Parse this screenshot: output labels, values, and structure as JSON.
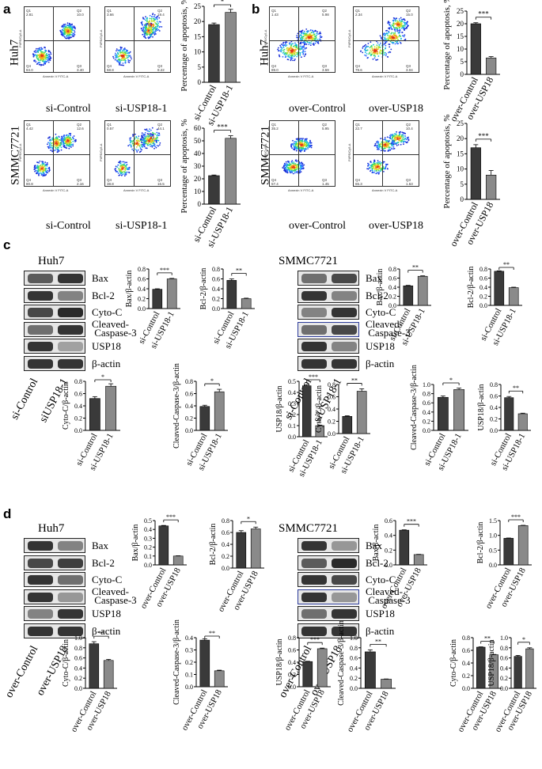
{
  "panels": {
    "a": "a",
    "b": "b",
    "c": "c",
    "d": "d"
  },
  "flow": {
    "axis_x": "Annexin V FITC-A",
    "axis_y": "PI/PE/Cy5-A",
    "plots": [
      {
        "id": "a-huh7-ctrl",
        "q": [
          "2.81",
          "10.0",
          "84.0",
          "3.40"
        ]
      },
      {
        "id": "a-huh7-si",
        "q": [
          "3.66",
          "19.4",
          "68.8",
          "8.22"
        ]
      },
      {
        "id": "a-smmc-ctrl",
        "q": [
          "4.42",
          "12.6",
          "80.8",
          "2.16"
        ]
      },
      {
        "id": "a-smmc-si",
        "q": [
          "0.57",
          "44.1",
          "38.8",
          "16.5"
        ]
      },
      {
        "id": "b-huh7-ctrl",
        "q": [
          "1.43",
          "5.98",
          "89.0",
          "3.59"
        ]
      },
      {
        "id": "b-huh7-over",
        "q": [
          "2.34",
          "15.0",
          "79.6",
          "3.04"
        ]
      },
      {
        "id": "b-smmc-ctrl",
        "q": [
          "35.2",
          "5.95",
          "57.4",
          "1.45"
        ]
      },
      {
        "id": "b-smmc-over",
        "q": [
          "22.7",
          "10.4",
          "65.3",
          "1.63"
        ]
      }
    ],
    "captions": {
      "si_control": "si-Control",
      "si_usp18": "si-USP18-1",
      "over_control": "over-Control",
      "over_usp18": "over-USP18"
    },
    "row_huh7": "Huh7",
    "row_smmc": "SMMC7721"
  },
  "western": {
    "huh7_title": "Huh7",
    "smmc_title": "SMMC7721",
    "proteins": [
      "Bax",
      "Bcl-2",
      "Cyto-C",
      "Cleaved-",
      "Caspase-3",
      "USP18",
      "β-actin"
    ],
    "lanes_c": [
      "si-Control",
      "siUSP18-1"
    ],
    "lanes_d": [
      "over-Control",
      "over-USP18"
    ]
  },
  "chart_data": [
    {
      "type": "bar",
      "panel": "a",
      "cell": "Huh7",
      "ylabel": "Percentage of apoptosis, %",
      "categories": [
        "si-Control",
        "si-USP18-1"
      ],
      "values": [
        19,
        23
      ],
      "errors": [
        0.5,
        1
      ],
      "sig": "*",
      "ylim": [
        0,
        25
      ],
      "yticks": [
        0,
        5,
        10,
        15,
        20,
        25
      ]
    },
    {
      "type": "bar",
      "panel": "a",
      "cell": "SMMC7721",
      "ylabel": "Percentage of apoptosis, %",
      "categories": [
        "si-Control",
        "si-USP18-1"
      ],
      "values": [
        22.5,
        52
      ],
      "errors": [
        0.5,
        2
      ],
      "sig": "***",
      "ylim": [
        0,
        60
      ],
      "yticks": [
        0,
        10,
        20,
        30,
        40,
        50,
        60
      ]
    },
    {
      "type": "bar",
      "panel": "b",
      "cell": "Huh7",
      "ylabel": "Percentage of apoptosis, %",
      "categories": [
        "over-Control",
        "over-USP18"
      ],
      "values": [
        20,
        6.5
      ],
      "errors": [
        0.4,
        0.5
      ],
      "sig": "***",
      "ylim": [
        0,
        25
      ],
      "yticks": [
        0,
        5,
        10,
        15,
        20,
        25
      ]
    },
    {
      "type": "bar",
      "panel": "b",
      "cell": "SMMC7721",
      "ylabel": "Percentage of apoptosis, %",
      "categories": [
        "over-Control",
        "over-USP18"
      ],
      "values": [
        17,
        8
      ],
      "errors": [
        1,
        1.5
      ],
      "sig": "***",
      "ylim": [
        0,
        25
      ],
      "yticks": [
        0,
        5,
        10,
        15,
        20,
        25
      ]
    },
    {
      "type": "bar",
      "panel": "c",
      "cell": "Huh7",
      "ylabel": "Bax/β-actin",
      "categories": [
        "si-Control",
        "si-USP18-1"
      ],
      "values": [
        0.39,
        0.6
      ],
      "errors": [
        0.01,
        0.01
      ],
      "sig": "***",
      "ylim": [
        0,
        0.8
      ],
      "yticks": [
        0.0,
        0.2,
        0.4,
        0.6,
        0.8
      ]
    },
    {
      "type": "bar",
      "panel": "c",
      "cell": "Huh7",
      "ylabel": "Bcl-2/β-actin",
      "categories": [
        "si-Control",
        "si-USP18-1"
      ],
      "values": [
        0.57,
        0.2
      ],
      "errors": [
        0.03,
        0.01
      ],
      "sig": "**",
      "ylim": [
        0,
        0.8
      ],
      "yticks": [
        0.0,
        0.2,
        0.4,
        0.6,
        0.8
      ]
    },
    {
      "type": "bar",
      "panel": "c",
      "cell": "Huh7",
      "ylabel": "Cyto-C/β-actin",
      "categories": [
        "si-Control",
        "si-USP18-1"
      ],
      "values": [
        0.52,
        0.72
      ],
      "errors": [
        0.03,
        0.04
      ],
      "sig": "*",
      "ylim": [
        0,
        0.8
      ],
      "yticks": [
        0.0,
        0.2,
        0.4,
        0.6,
        0.8
      ]
    },
    {
      "type": "bar",
      "panel": "c",
      "cell": "Huh7",
      "ylabel": "Cleaved-Caspase-3/β-actin",
      "categories": [
        "si-Control",
        "si-USP18-1"
      ],
      "values": [
        0.39,
        0.63
      ],
      "errors": [
        0.02,
        0.04
      ],
      "sig": "*",
      "ylim": [
        0,
        0.8
      ],
      "yticks": [
        0.0,
        0.2,
        0.4,
        0.6,
        0.8
      ]
    },
    {
      "type": "bar",
      "panel": "c",
      "cell": "Huh7",
      "ylabel": "USP18/β-actin",
      "categories": [
        "si-Control",
        "si-USP18-1"
      ],
      "values": [
        0.46,
        0.1
      ],
      "errors": [
        0.01,
        0.005
      ],
      "sig": "***",
      "ylim": [
        0,
        0.5
      ],
      "yticks": [
        0.0,
        0.1,
        0.2,
        0.3,
        0.4,
        0.5
      ]
    },
    {
      "type": "bar",
      "panel": "c",
      "cell": "SMMC7721",
      "ylabel": "Bax/β-actin",
      "categories": [
        "si-Control",
        "si-USP18-1"
      ],
      "values": [
        0.43,
        0.64
      ],
      "errors": [
        0.01,
        0.01
      ],
      "sig": "**",
      "ylim": [
        0,
        0.8
      ],
      "yticks": [
        0.0,
        0.2,
        0.4,
        0.6,
        0.8
      ]
    },
    {
      "type": "bar",
      "panel": "c",
      "cell": "SMMC7721",
      "ylabel": "Bcl-2/β-actin",
      "categories": [
        "si-Control",
        "si-USP18-1"
      ],
      "values": [
        0.75,
        0.39
      ],
      "errors": [
        0.01,
        0.01
      ],
      "sig": "**",
      "ylim": [
        0,
        0.8
      ],
      "yticks": [
        0.0,
        0.2,
        0.4,
        0.6,
        0.8
      ]
    },
    {
      "type": "bar",
      "panel": "c",
      "cell": "SMMC7721",
      "ylabel": "Cyto-C/β-actin",
      "categories": [
        "si-Control",
        "si-USP18-1"
      ],
      "values": [
        0.28,
        0.69
      ],
      "errors": [
        0.01,
        0.04
      ],
      "sig": "**",
      "ylim": [
        0,
        0.8
      ],
      "yticks": [
        0.0,
        0.2,
        0.4,
        0.6,
        0.8
      ]
    },
    {
      "type": "bar",
      "panel": "c",
      "cell": "SMMC7721",
      "ylabel": "Cleaved-Caspase-3/β-actin",
      "categories": [
        "si-Control",
        "si-USP18-1"
      ],
      "values": [
        0.72,
        0.89
      ],
      "errors": [
        0.03,
        0.03
      ],
      "sig": "*",
      "ylim": [
        0,
        1.0
      ],
      "yticks": [
        0.0,
        0.2,
        0.4,
        0.6,
        0.8,
        1.0
      ]
    },
    {
      "type": "bar",
      "panel": "c",
      "cell": "SMMC7721",
      "ylabel": "USP18/β-actin",
      "categories": [
        "si-Control",
        "si-USP18-1"
      ],
      "values": [
        0.57,
        0.29
      ],
      "errors": [
        0.02,
        0.01
      ],
      "sig": "**",
      "ylim": [
        0,
        0.8
      ],
      "yticks": [
        0.0,
        0.2,
        0.4,
        0.6,
        0.8
      ]
    },
    {
      "type": "bar",
      "panel": "d",
      "cell": "Huh7",
      "ylabel": "Bax/β-actin",
      "categories": [
        "over-Control",
        "over-USP18"
      ],
      "values": [
        0.44,
        0.1
      ],
      "errors": [
        0.005,
        0.003
      ],
      "sig": "***",
      "ylim": [
        0,
        0.5
      ],
      "yticks": [
        0.0,
        0.1,
        0.2,
        0.3,
        0.4,
        0.5
      ]
    },
    {
      "type": "bar",
      "panel": "d",
      "cell": "Huh7",
      "ylabel": "Bcl-2/β-actin",
      "categories": [
        "over-Control",
        "over-USP18"
      ],
      "values": [
        0.6,
        0.66
      ],
      "errors": [
        0.03,
        0.03
      ],
      "sig": "*",
      "ylim": [
        0,
        0.8
      ],
      "yticks": [
        0.0,
        0.2,
        0.4,
        0.6,
        0.8
      ]
    },
    {
      "type": "bar",
      "panel": "d",
      "cell": "Huh7",
      "ylabel": "Cyto-C/β-actin",
      "categories": [
        "over-Control",
        "over-USP18"
      ],
      "values": [
        0.88,
        0.55
      ],
      "errors": [
        0.04,
        0.02
      ],
      "sig": "**",
      "ylim": [
        0,
        1.0
      ],
      "yticks": [
        0.0,
        0.2,
        0.4,
        0.6,
        0.8,
        1.0
      ]
    },
    {
      "type": "bar",
      "panel": "d",
      "cell": "Huh7",
      "ylabel": "Cleaved-Caspase-3/β-actin",
      "categories": [
        "over-Control",
        "over-USP18"
      ],
      "values": [
        0.38,
        0.13
      ],
      "errors": [
        0.01,
        0.005
      ],
      "sig": "**",
      "ylim": [
        0,
        0.4
      ],
      "yticks": [
        0.0,
        0.1,
        0.2,
        0.3,
        0.4
      ]
    },
    {
      "type": "bar",
      "panel": "d",
      "cell": "Huh7",
      "ylabel": "USP18/β-actin",
      "categories": [
        "over-Control",
        "over-USP18"
      ],
      "values": [
        0.41,
        0.62
      ],
      "errors": [
        0.005,
        0.01
      ],
      "sig": "***",
      "ylim": [
        0,
        0.8
      ],
      "yticks": [
        0.0,
        0.2,
        0.4,
        0.6,
        0.8
      ]
    },
    {
      "type": "bar",
      "panel": "d",
      "cell": "SMMC7721",
      "ylabel": "Bax/β-actin",
      "categories": [
        "over-Control",
        "over-USP18"
      ],
      "values": [
        0.47,
        0.14
      ],
      "errors": [
        0.005,
        0.003
      ],
      "sig": "***",
      "ylim": [
        0,
        0.6
      ],
      "yticks": [
        0.0,
        0.2,
        0.4,
        0.6
      ]
    },
    {
      "type": "bar",
      "panel": "d",
      "cell": "SMMC7721",
      "ylabel": "Bcl-2/β-actin",
      "categories": [
        "over-Control",
        "over-USP18"
      ],
      "values": [
        0.9,
        1.33
      ],
      "errors": [
        0.01,
        0.01
      ],
      "sig": "***",
      "ylim": [
        0,
        1.5
      ],
      "yticks": [
        0.0,
        0.5,
        1.0,
        1.5
      ]
    },
    {
      "type": "bar",
      "panel": "d",
      "cell": "SMMC7721",
      "ylabel": "Cleaved-Caspase-3/β-actin",
      "categories": [
        "over-Control",
        "over-USP18"
      ],
      "values": [
        0.72,
        0.18
      ],
      "errors": [
        0.04,
        0.005
      ],
      "sig": "**",
      "ylim": [
        0,
        1.0
      ],
      "yticks": [
        0.0,
        0.2,
        0.4,
        0.6,
        0.8,
        1.0
      ]
    },
    {
      "type": "bar",
      "panel": "d",
      "cell": "SMMC7721",
      "ylabel": "Cyto-C/β-actin",
      "categories": [
        "over-Control",
        "over-USP18"
      ],
      "values": [
        0.65,
        0.53
      ],
      "errors": [
        0.005,
        0.005
      ],
      "sig": "**",
      "ylim": [
        0,
        0.8
      ],
      "yticks": [
        0.0,
        0.2,
        0.4,
        0.6,
        0.8
      ]
    },
    {
      "type": "bar",
      "panel": "d",
      "cell": "SMMC7721",
      "ylabel": "USP18/β-actin",
      "categories": [
        "over-Control",
        "over-USP18"
      ],
      "values": [
        0.63,
        0.78
      ],
      "errors": [
        0.02,
        0.02
      ],
      "sig": "*",
      "ylim": [
        0,
        1.0
      ],
      "yticks": [
        0.0,
        0.2,
        0.4,
        0.6,
        0.8,
        1.0
      ]
    }
  ]
}
